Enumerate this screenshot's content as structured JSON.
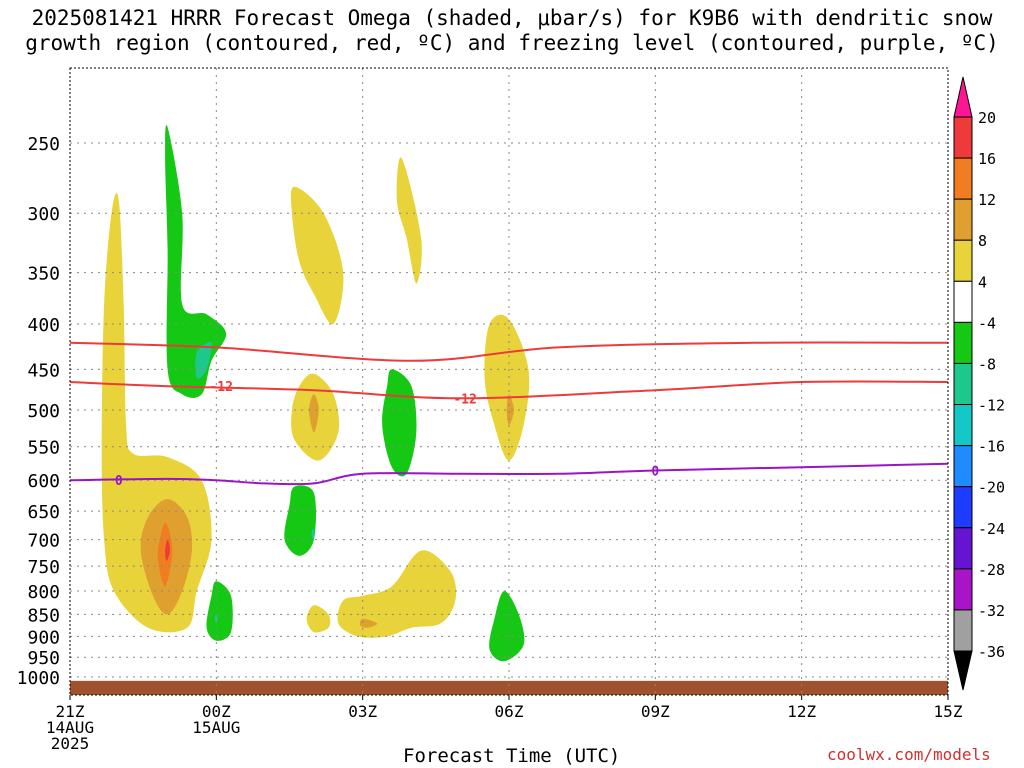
{
  "title_line1": "2025081421 HRRR Forecast Omega (shaded, μbar/s) for K9B6 with dendritic snow",
  "title_line2": "growth region (contoured, red, ºC) and freezing level (contoured, purple, ºC)",
  "credit": "coolwx.com/models",
  "chart_data": {
    "type": "heatmap",
    "xlabel": "Forecast Time (UTC)",
    "ylabel": "",
    "x_ticks": [
      {
        "hour": 0,
        "label": [
          "21Z",
          "14AUG",
          "2025"
        ]
      },
      {
        "hour": 3,
        "label": [
          "00Z",
          "15AUG"
        ]
      },
      {
        "hour": 6,
        "label": [
          "03Z"
        ]
      },
      {
        "hour": 9,
        "label": [
          "06Z"
        ]
      },
      {
        "hour": 12,
        "label": [
          "09Z"
        ]
      },
      {
        "hour": 15,
        "label": [
          "12Z"
        ]
      },
      {
        "hour": 18,
        "label": [
          "15Z"
        ]
      }
    ],
    "xlim": [
      0,
      18
    ],
    "y_ticks": [
      250,
      300,
      350,
      400,
      450,
      500,
      550,
      600,
      650,
      700,
      750,
      800,
      850,
      900,
      950,
      1000
    ],
    "ylim": [
      1020,
      200
    ],
    "grid": true,
    "colorbar": {
      "levels": [
        20,
        16,
        12,
        8,
        4,
        -4,
        -8,
        -12,
        -16,
        -20,
        -24,
        -28,
        -32,
        -36
      ],
      "colors": [
        "#ff1493",
        "#ee3a3a",
        "#f07d20",
        "#e0a030",
        "#e8d43a",
        "#ffffff",
        "#14c814",
        "#1ec88c",
        "#14c8c8",
        "#1e8cff",
        "#1e3cff",
        "#6414d2",
        "#aa14c8",
        "#a0a0a0",
        "#000000"
      ]
    },
    "omega_regions": [
      {
        "level": 4,
        "points": [
          [
            1.0,
            290
          ],
          [
            1.1,
            380
          ],
          [
            1.15,
            520
          ],
          [
            1.3,
            560
          ],
          [
            2.0,
            565
          ],
          [
            2.7,
            600
          ],
          [
            2.9,
            700
          ],
          [
            2.6,
            800
          ],
          [
            2.4,
            880
          ],
          [
            1.6,
            880
          ],
          [
            0.9,
            800
          ],
          [
            0.7,
            700
          ],
          [
            0.65,
            550
          ],
          [
            0.7,
            380
          ],
          [
            0.85,
            300
          ]
        ]
      },
      {
        "level": 8,
        "points": [
          [
            2.0,
            630
          ],
          [
            2.4,
            660
          ],
          [
            2.5,
            720
          ],
          [
            2.3,
            800
          ],
          [
            2.0,
            850
          ],
          [
            1.7,
            810
          ],
          [
            1.45,
            720
          ],
          [
            1.6,
            660
          ]
        ]
      },
      {
        "level": 12,
        "points": [
          [
            1.95,
            670
          ],
          [
            2.1,
            720
          ],
          [
            1.95,
            790
          ],
          [
            1.8,
            730
          ]
        ]
      },
      {
        "level": 16,
        "points": [
          [
            2.0,
            700
          ],
          [
            2.05,
            720
          ],
          [
            1.98,
            740
          ],
          [
            1.95,
            720
          ]
        ]
      },
      {
        "level": 4,
        "points": [
          [
            4.6,
            280
          ],
          [
            5.2,
            300
          ],
          [
            5.6,
            350
          ],
          [
            5.4,
            400
          ],
          [
            5.0,
            370
          ],
          [
            4.7,
            340
          ],
          [
            4.55,
            300
          ]
        ]
      },
      {
        "level": 4,
        "points": [
          [
            4.7,
            470
          ],
          [
            5.0,
            455
          ],
          [
            5.4,
            480
          ],
          [
            5.5,
            530
          ],
          [
            5.1,
            570
          ],
          [
            4.6,
            540
          ],
          [
            4.55,
            500
          ]
        ]
      },
      {
        "level": 8,
        "points": [
          [
            5.0,
            480
          ],
          [
            5.1,
            500
          ],
          [
            5.0,
            530
          ],
          [
            4.9,
            500
          ]
        ]
      },
      {
        "level": 4,
        "points": [
          [
            6.8,
            260
          ],
          [
            7.2,
            320
          ],
          [
            7.1,
            360
          ],
          [
            6.9,
            320
          ],
          [
            6.7,
            290
          ]
        ]
      },
      {
        "level": 4,
        "points": [
          [
            8.6,
            400
          ],
          [
            9.0,
            395
          ],
          [
            9.4,
            450
          ],
          [
            9.3,
            520
          ],
          [
            9.0,
            570
          ],
          [
            8.7,
            520
          ],
          [
            8.5,
            460
          ]
        ]
      },
      {
        "level": 8,
        "points": [
          [
            9.0,
            480
          ],
          [
            9.1,
            500
          ],
          [
            9.0,
            520
          ],
          [
            8.95,
            500
          ]
        ]
      },
      {
        "level": 4,
        "points": [
          [
            7.2,
            720
          ],
          [
            7.8,
            760
          ],
          [
            7.9,
            820
          ],
          [
            7.6,
            870
          ],
          [
            7.0,
            880
          ],
          [
            6.5,
            900
          ],
          [
            5.9,
            900
          ],
          [
            5.5,
            870
          ],
          [
            5.6,
            820
          ],
          [
            6.0,
            810
          ],
          [
            6.6,
            790
          ]
        ]
      },
      {
        "level": 8,
        "points": [
          [
            6.0,
            860
          ],
          [
            6.3,
            870
          ],
          [
            6.1,
            880
          ],
          [
            5.95,
            875
          ]
        ]
      },
      {
        "level": 4,
        "points": [
          [
            5.0,
            830
          ],
          [
            5.3,
            850
          ],
          [
            5.3,
            880
          ],
          [
            5.0,
            890
          ],
          [
            4.85,
            860
          ]
        ]
      },
      {
        "level": -4,
        "points": [
          [
            2.0,
            240
          ],
          [
            2.3,
            300
          ],
          [
            2.3,
            380
          ],
          [
            2.8,
            390
          ],
          [
            3.2,
            410
          ],
          [
            2.9,
            440
          ],
          [
            2.7,
            480
          ],
          [
            2.3,
            480
          ],
          [
            2.0,
            450
          ],
          [
            2.0,
            330
          ],
          [
            1.95,
            260
          ]
        ]
      },
      {
        "level": -8,
        "points": [
          [
            2.6,
            430
          ],
          [
            2.9,
            420
          ],
          [
            2.8,
            450
          ],
          [
            2.6,
            460
          ]
        ]
      },
      {
        "level": -4,
        "points": [
          [
            6.6,
            450
          ],
          [
            7.0,
            470
          ],
          [
            7.1,
            530
          ],
          [
            6.9,
            590
          ],
          [
            6.6,
            580
          ],
          [
            6.4,
            520
          ],
          [
            6.5,
            470
          ]
        ]
      },
      {
        "level": -4,
        "points": [
          [
            4.6,
            610
          ],
          [
            5.0,
            620
          ],
          [
            5.0,
            700
          ],
          [
            4.7,
            730
          ],
          [
            4.4,
            700
          ],
          [
            4.5,
            640
          ]
        ]
      },
      {
        "level": -8,
        "points": [
          [
            4.98,
            680
          ],
          [
            5.02,
            690
          ],
          [
            4.98,
            700
          ],
          [
            4.95,
            690
          ]
        ]
      },
      {
        "level": -4,
        "points": [
          [
            3.0,
            780
          ],
          [
            3.3,
            810
          ],
          [
            3.3,
            890
          ],
          [
            3.0,
            910
          ],
          [
            2.8,
            880
          ],
          [
            2.9,
            810
          ]
        ]
      },
      {
        "level": -8,
        "points": [
          [
            3.0,
            850
          ],
          [
            3.03,
            860
          ],
          [
            3.0,
            870
          ],
          [
            2.97,
            860
          ]
        ]
      },
      {
        "level": -4,
        "points": [
          [
            8.9,
            800
          ],
          [
            9.2,
            850
          ],
          [
            9.3,
            920
          ],
          [
            8.9,
            960
          ],
          [
            8.6,
            930
          ],
          [
            8.7,
            860
          ]
        ]
      }
    ],
    "contours": [
      {
        "name": "-12",
        "color": "#ee3a3a",
        "points": [
          [
            0,
            420
          ],
          [
            3,
            425
          ],
          [
            7,
            440
          ],
          [
            10,
            425
          ],
          [
            14,
            420
          ],
          [
            18,
            420
          ]
        ]
      },
      {
        "name": "-12",
        "color": "#ee3a3a",
        "points": [
          [
            0,
            465
          ],
          [
            2,
            470
          ],
          [
            5,
            475
          ],
          [
            8,
            485
          ],
          [
            12,
            475
          ],
          [
            15,
            465
          ],
          [
            18,
            465
          ]
        ]
      },
      {
        "name": "0",
        "color": "#9a14c8",
        "points": [
          [
            0,
            600
          ],
          [
            2,
            598
          ],
          [
            3,
            600
          ],
          [
            4,
            605
          ],
          [
            5,
            605
          ],
          [
            6,
            590
          ],
          [
            8,
            590
          ],
          [
            10,
            590
          ],
          [
            12,
            585
          ],
          [
            15,
            580
          ],
          [
            18,
            575
          ]
        ]
      }
    ],
    "contour_labels": [
      {
        "text": "-12",
        "x": 3.1,
        "y": 470,
        "color": "#ee3a3a"
      },
      {
        "text": "-12",
        "x": 8.1,
        "y": 485,
        "color": "#ee3a3a"
      },
      {
        "text": "0",
        "x": 1.0,
        "y": 600,
        "color": "#9a14c8"
      },
      {
        "text": "0",
        "x": 12.0,
        "y": 585,
        "color": "#9a14c8"
      }
    ],
    "ground_level": 1010
  }
}
